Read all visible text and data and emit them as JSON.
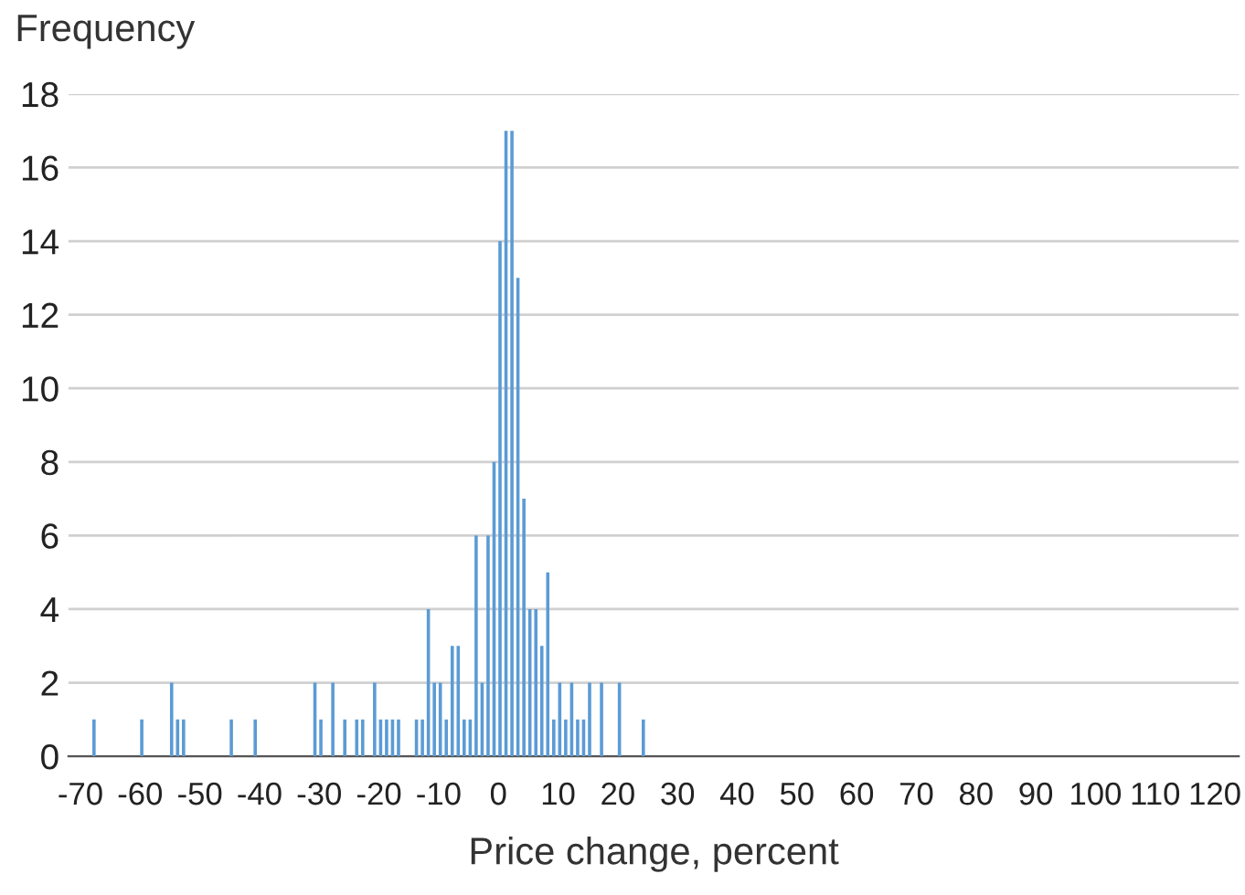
{
  "chart_data": {
    "type": "histogram",
    "ylabel": "Frequency",
    "xlabel": "Price change, percent",
    "color": "#5b9bd5",
    "bins": [
      -68,
      -67,
      -66,
      -65,
      -64,
      -63,
      -62,
      -61,
      -60,
      -59,
      -58,
      -57,
      -56,
      -55,
      -54,
      -53,
      -52,
      -51,
      -50,
      -49,
      -48,
      -47,
      -46,
      -45,
      -44,
      -43,
      -42,
      -41,
      -40,
      -39,
      -38,
      -37,
      -36,
      -35,
      -34,
      -33,
      -32,
      -31,
      -30,
      -29,
      -28,
      -27,
      -26,
      -25,
      -24,
      -23,
      -22,
      -21,
      -20,
      -19,
      -18,
      -17,
      -16,
      -15,
      -14,
      -13,
      -12,
      -11,
      -10,
      -9,
      -8,
      -7,
      -6,
      -5,
      -4,
      -3,
      -2,
      -1,
      0,
      1,
      2,
      3,
      4,
      5,
      6,
      7,
      8,
      9,
      10,
      11,
      12,
      13,
      14,
      15,
      16,
      17,
      18,
      19,
      20,
      21,
      22,
      23,
      24,
      25
    ],
    "values": [
      1,
      0,
      0,
      0,
      0,
      0,
      0,
      0,
      1,
      0,
      0,
      0,
      0,
      2,
      1,
      1,
      0,
      0,
      0,
      0,
      0,
      0,
      0,
      1,
      0,
      0,
      0,
      1,
      0,
      0,
      0,
      0,
      0,
      0,
      0,
      0,
      0,
      2,
      1,
      0,
      2,
      0,
      1,
      0,
      1,
      1,
      0,
      2,
      1,
      1,
      1,
      1,
      0,
      0,
      1,
      1,
      4,
      2,
      2,
      1,
      3,
      3,
      1,
      1,
      6,
      2,
      6,
      8,
      14,
      17,
      17,
      13,
      7,
      4,
      4,
      3,
      5,
      1,
      2,
      1,
      2,
      1,
      1,
      2,
      0,
      2,
      0,
      0,
      2,
      0,
      0,
      0,
      1
    ],
    "xlim": [
      -72,
      124
    ],
    "xticks": [
      -70,
      -60,
      -50,
      -40,
      -30,
      -20,
      -10,
      0,
      10,
      20,
      30,
      40,
      50,
      60,
      70,
      80,
      90,
      100,
      110,
      120
    ],
    "ylim": [
      0,
      18
    ],
    "yticks": [
      0,
      2,
      4,
      6,
      8,
      10,
      12,
      14,
      16,
      18
    ],
    "grid": "y"
  }
}
